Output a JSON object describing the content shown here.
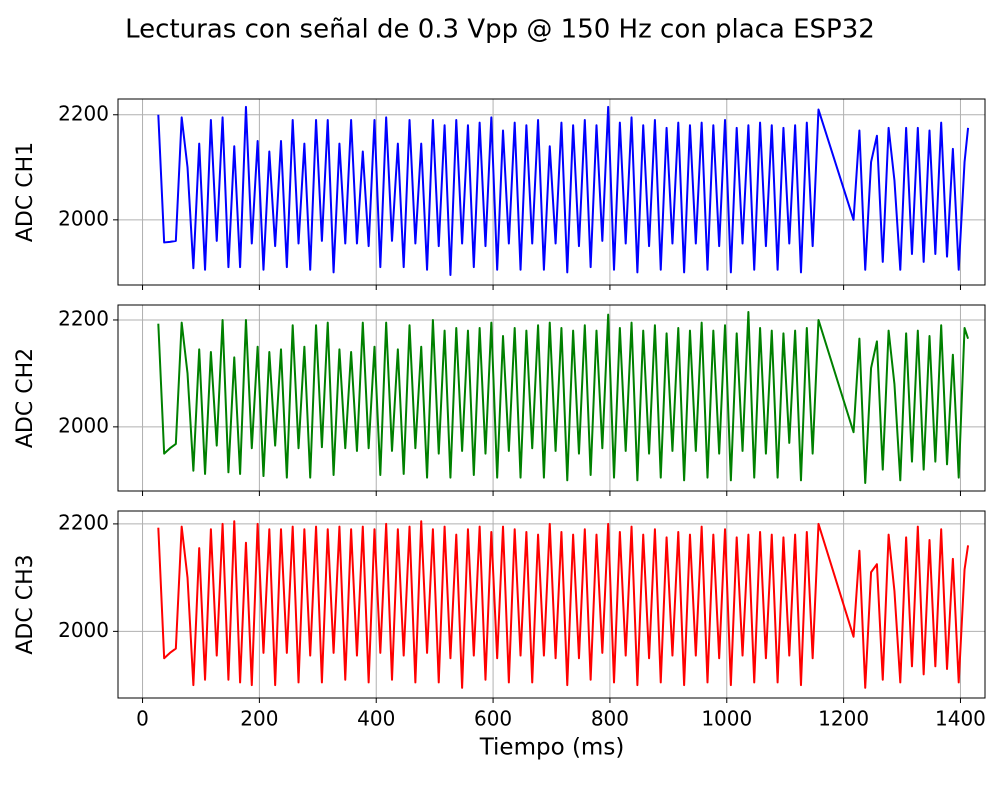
{
  "chart_data": {
    "type": "line",
    "title": "Lecturas con señal de 0.3 Vpp @ 150 Hz con placa ESP32",
    "x_label": "Tiempo (ms)",
    "xlim": [
      -42,
      1442
    ],
    "xticks": [
      0,
      200,
      400,
      600,
      800,
      1000,
      1200,
      1400
    ],
    "grid": true,
    "x": [
      27,
      37,
      47,
      57,
      67,
      77,
      87,
      97,
      107,
      117,
      127,
      137,
      147,
      157,
      167,
      177,
      187,
      197,
      207,
      217,
      227,
      237,
      247,
      257,
      267,
      277,
      287,
      297,
      307,
      317,
      327,
      337,
      347,
      357,
      367,
      377,
      387,
      397,
      407,
      417,
      427,
      437,
      447,
      457,
      467,
      477,
      487,
      497,
      507,
      517,
      527,
      537,
      547,
      557,
      567,
      577,
      587,
      597,
      607,
      617,
      627,
      637,
      647,
      657,
      667,
      677,
      687,
      697,
      707,
      717,
      727,
      737,
      747,
      757,
      767,
      777,
      787,
      797,
      807,
      817,
      827,
      837,
      847,
      857,
      867,
      877,
      887,
      897,
      907,
      917,
      927,
      937,
      947,
      957,
      967,
      977,
      987,
      997,
      1007,
      1017,
      1027,
      1037,
      1047,
      1057,
      1067,
      1077,
      1087,
      1097,
      1107,
      1117,
      1127,
      1137,
      1147,
      1157,
      1217,
      1227,
      1237,
      1247,
      1257,
      1267,
      1277,
      1287,
      1297,
      1307,
      1317,
      1327,
      1337,
      1347,
      1357,
      1367,
      1377,
      1387,
      1397,
      1407,
      1413
    ],
    "series": [
      {
        "y_label": "ADC CH1",
        "color": "#0000ff",
        "ylim": [
          1876,
          2230
        ],
        "yticks": [
          2000,
          2200
        ],
        "values": [
          2200,
          1957,
          1958,
          1960,
          2195,
          2100,
          1908,
          2145,
          1905,
          2190,
          1960,
          2195,
          1910,
          2140,
          1910,
          2215,
          1955,
          2150,
          1905,
          2130,
          1950,
          2150,
          1910,
          2190,
          1955,
          2145,
          1905,
          2190,
          1960,
          2190,
          1900,
          2145,
          1955,
          2190,
          1955,
          2130,
          1950,
          2190,
          1910,
          2195,
          1960,
          2145,
          1910,
          2190,
          1955,
          2145,
          1905,
          2190,
          1950,
          2180,
          1895,
          2190,
          1955,
          2180,
          1910,
          2185,
          1950,
          2195,
          1905,
          2170,
          1955,
          2185,
          1905,
          2180,
          1955,
          2190,
          1905,
          2140,
          1955,
          2185,
          1900,
          2180,
          1950,
          2190,
          1910,
          2180,
          1960,
          2215,
          1905,
          2185,
          1955,
          2195,
          1900,
          2180,
          1950,
          2190,
          1905,
          2175,
          1955,
          2185,
          1900,
          2180,
          1955,
          2185,
          1905,
          2180,
          1950,
          2190,
          1900,
          2175,
          1955,
          2180,
          1905,
          2185,
          1950,
          2180,
          1905,
          2175,
          1955,
          2180,
          1900,
          2185,
          1950,
          2210,
          2000,
          2170,
          1905,
          2110,
          2160,
          1920,
          2175,
          2075,
          1905,
          2175,
          1935,
          2175,
          1920,
          2170,
          1935,
          2185,
          1930,
          2135,
          1905,
          2110,
          2175
        ]
      },
      {
        "y_label": "ADC CH2",
        "color": "#008000",
        "ylim": [
          1880,
          2228
        ],
        "yticks": [
          2000,
          2200
        ],
        "values": [
          2193,
          1950,
          1960,
          1968,
          2195,
          2100,
          1918,
          2145,
          1912,
          2140,
          1965,
          2200,
          1915,
          2130,
          1912,
          2200,
          1960,
          2150,
          1908,
          2140,
          1965,
          2145,
          1905,
          2190,
          1960,
          2150,
          1905,
          2190,
          1962,
          2195,
          1910,
          2145,
          1960,
          2140,
          1955,
          2195,
          1960,
          2150,
          1910,
          2195,
          1955,
          2145,
          1912,
          2190,
          1960,
          2150,
          1905,
          2200,
          1950,
          2180,
          1905,
          2185,
          1955,
          2180,
          1910,
          2185,
          1950,
          2195,
          1905,
          2170,
          1955,
          2185,
          1905,
          2180,
          1960,
          2190,
          1905,
          2195,
          1955,
          2185,
          1900,
          2180,
          1950,
          2190,
          1910,
          2180,
          1960,
          2210,
          1905,
          2185,
          1955,
          2195,
          1900,
          2180,
          1950,
          2190,
          1905,
          2175,
          1955,
          2185,
          1900,
          2180,
          1955,
          2195,
          1905,
          2180,
          1950,
          2190,
          1900,
          2175,
          1955,
          2215,
          1905,
          2185,
          1950,
          2180,
          1905,
          2175,
          1970,
          2180,
          1900,
          2185,
          1950,
          2200,
          1990,
          2165,
          1895,
          2110,
          2160,
          1920,
          2180,
          2080,
          1900,
          2175,
          1935,
          2180,
          1920,
          2170,
          1935,
          2190,
          1930,
          2135,
          1905,
          2185,
          2165
        ]
      },
      {
        "y_label": "ADC CH3",
        "color": "#ff0000",
        "ylim": [
          1876,
          2224
        ],
        "yticks": [
          2000,
          2200
        ],
        "values": [
          2193,
          1950,
          1960,
          1968,
          2195,
          2100,
          1900,
          2155,
          1910,
          2190,
          1955,
          2200,
          1910,
          2205,
          1905,
          2165,
          1900,
          2200,
          1960,
          2190,
          1900,
          2190,
          1960,
          2195,
          1905,
          2190,
          1955,
          2195,
          1905,
          2190,
          1960,
          2195,
          1910,
          2190,
          1955,
          2195,
          1905,
          2190,
          1960,
          2200,
          1910,
          2190,
          1955,
          2195,
          1905,
          2205,
          1960,
          2190,
          1905,
          2195,
          1950,
          2180,
          1895,
          2190,
          1955,
          2195,
          1910,
          2185,
          1950,
          2195,
          1905,
          2190,
          1955,
          2185,
          1905,
          2180,
          1955,
          2200,
          1950,
          2185,
          1900,
          2180,
          1950,
          2190,
          1910,
          2180,
          1960,
          2200,
          1905,
          2185,
          1955,
          2195,
          1900,
          2180,
          1950,
          2190,
          1905,
          2175,
          1955,
          2185,
          1900,
          2180,
          1955,
          2195,
          1905,
          2180,
          1950,
          2190,
          1900,
          2175,
          1955,
          2180,
          1905,
          2185,
          1950,
          2180,
          1905,
          2175,
          1955,
          2180,
          1900,
          2185,
          1950,
          2200,
          1990,
          2150,
          1895,
          2110,
          2125,
          1910,
          2180,
          2075,
          1905,
          2175,
          1935,
          2195,
          1920,
          2170,
          1935,
          2190,
          1930,
          2135,
          1905,
          2115,
          2160
        ]
      }
    ]
  }
}
